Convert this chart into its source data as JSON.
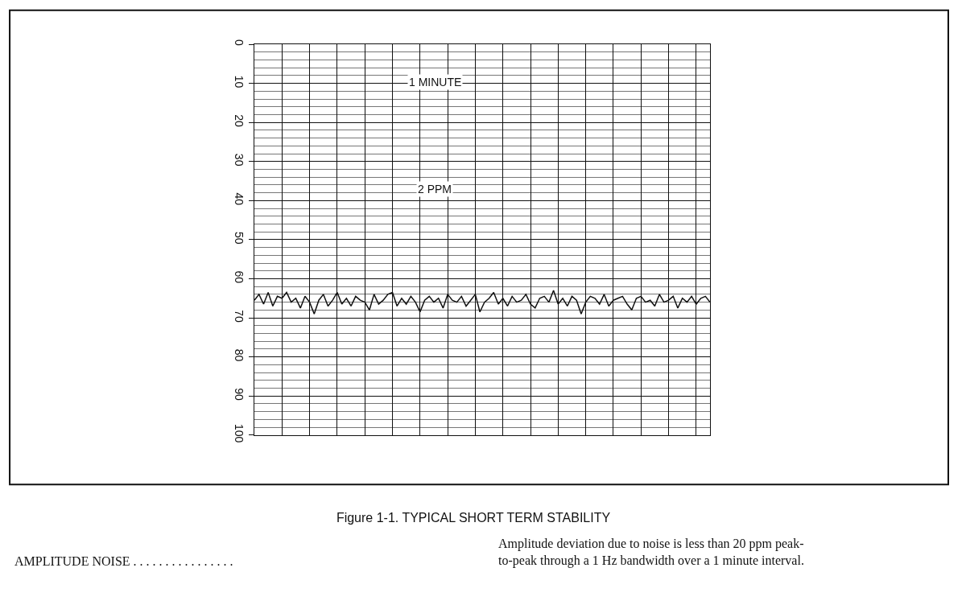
{
  "chart_data": {
    "type": "line",
    "title": "Figure 1-1. TYPICAL SHORT TERM STABILITY",
    "categories": [
      null,
      null,
      null,
      null,
      null,
      null,
      null,
      null,
      null,
      null,
      null,
      null,
      null,
      null,
      null,
      null,
      null,
      null,
      null,
      null,
      null,
      null,
      null,
      null,
      null,
      null,
      null,
      null,
      null,
      null,
      null,
      null,
      null,
      null,
      null,
      null,
      null,
      null,
      null,
      null,
      null,
      null,
      null,
      null,
      null,
      null,
      null,
      null,
      null,
      null,
      null,
      null,
      null,
      null,
      null,
      null,
      null,
      null,
      null,
      null,
      null,
      null,
      null,
      null,
      null,
      null,
      null,
      null,
      null,
      null,
      null,
      null,
      null,
      null,
      null,
      null,
      null,
      null,
      null,
      null,
      null,
      null,
      null,
      null,
      null,
      null,
      null,
      null,
      null,
      null,
      null,
      null,
      null,
      null,
      null,
      null,
      null,
      null,
      null,
      null
    ],
    "series": [
      {
        "color": "#111111",
        "values": [
          65.5,
          64,
          66.5,
          63.5,
          67,
          64.5,
          65,
          63.5,
          66,
          65,
          67.5,
          64.5,
          66,
          69,
          65.5,
          64,
          67,
          65.5,
          63.5,
          66.5,
          65,
          67,
          64.5,
          65.5,
          66,
          68,
          64,
          66.5,
          65.5,
          64,
          63.5,
          67,
          65,
          66.5,
          64.5,
          66,
          68.5,
          65.5,
          64.5,
          66,
          65,
          67.5,
          64,
          65.5,
          66,
          64.5,
          67,
          65.5,
          64,
          68.5,
          66,
          65,
          63.5,
          66.5,
          65,
          67,
          64.5,
          66,
          65.5,
          64,
          66.5,
          67.5,
          65,
          64.5,
          66,
          63,
          66.5,
          65,
          67,
          64.5,
          65.5,
          69,
          66,
          64.5,
          65,
          66.5,
          64,
          67,
          65.5,
          65,
          64.5,
          66.5,
          68,
          65,
          64.5,
          66,
          65.5,
          67,
          64,
          66,
          65.5,
          64.5,
          67.5,
          65,
          66,
          64.5,
          66.5,
          65,
          64.5,
          66
        ]
      }
    ],
    "ylim": [
      100,
      0
    ],
    "yticks": [
      0,
      10,
      20,
      30,
      40,
      50,
      60,
      70,
      80,
      90,
      100
    ],
    "grid": true,
    "tick_labels": "y",
    "marker": "none",
    "line_style": "solid",
    "annotations": [
      "1 MINUTE",
      "2 PPM",
      "AMPLITUDE NOISE . . . . . . . . . . . . . . . .",
      "Amplitude deviation due to noise is less than 20 ppm peak-\nto-peak through a 1 Hz bandwidth over a 1 minute interval."
    ]
  }
}
